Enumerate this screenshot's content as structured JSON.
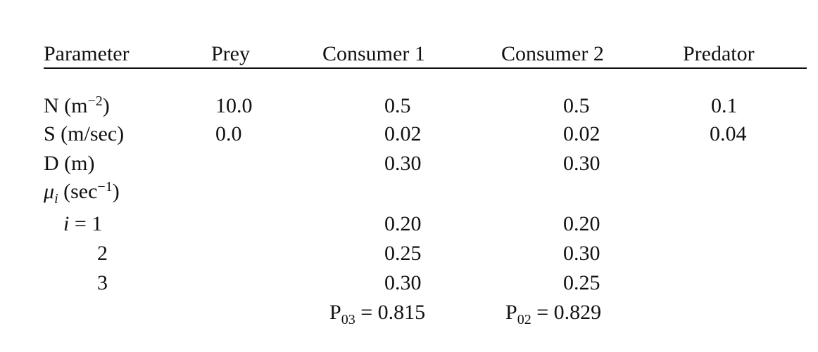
{
  "table": {
    "headers": {
      "parameter": "Parameter",
      "prey": "Prey",
      "consumer1": "Consumer 1",
      "consumer2": "Consumer 2",
      "predator": "Predator"
    },
    "rows": {
      "n": {
        "label_base": "N (m",
        "label_sup": "−2",
        "label_end": ")",
        "prey": "10.0",
        "consumer1": "0.5",
        "consumer2": "0.5",
        "predator": "0.1"
      },
      "s": {
        "label": "S (m/sec)",
        "prey": "0.0",
        "consumer1": "0.02",
        "consumer2": "0.02",
        "predator": "0.04"
      },
      "d": {
        "label": "D (m)",
        "consumer1": "0.30",
        "consumer2": "0.30"
      },
      "mu": {
        "symbol": "μ",
        "subscript": "i",
        "unit_base": " (sec",
        "unit_sup": "−1",
        "unit_end": ")"
      },
      "i1": {
        "label_var": "i",
        "label_rest": " = 1",
        "consumer1": "0.20",
        "consumer2": "0.20"
      },
      "i2": {
        "label": "2",
        "consumer1": "0.25",
        "consumer2": "0.30"
      },
      "i3": {
        "label": "3",
        "consumer1": "0.30",
        "consumer2": "0.25"
      },
      "p": {
        "consumer1_base": "P",
        "consumer1_sub": "03",
        "consumer1_value": " = 0.815",
        "consumer2_base": "P",
        "consumer2_sub": "02",
        "consumer2_value": " = 0.829"
      }
    }
  }
}
